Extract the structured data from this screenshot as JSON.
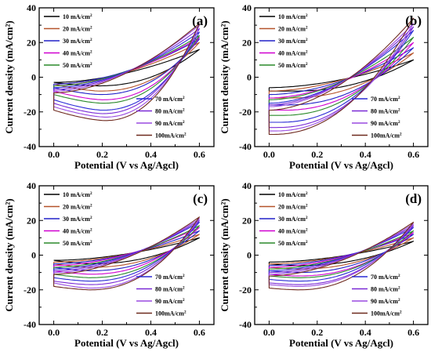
{
  "chart_data": [
    {
      "type": "line",
      "panel_label": "(a)",
      "xlabel": "Potential (V vs Ag/Agcl)",
      "ylabel": "Current density (mA/cm²)",
      "xlim": [
        -0.06,
        0.66
      ],
      "ylim": [
        -40,
        40
      ],
      "xticks": [
        "0.0",
        "0.2",
        "0.4",
        "0.6"
      ],
      "yticks": [
        "40",
        "20",
        "0",
        "-20",
        "-40"
      ],
      "legend_left": [
        "10 mA/cm2",
        "20 mA/cm2",
        "30 mA/cm2",
        "40 mA/cm2",
        "50 mA/cm2"
      ],
      "legend_right": [
        "70 mA/cm2",
        "80 mA/cm2",
        "90 mA/cm2",
        "100mA/cm2"
      ],
      "series": [
        {
          "color": "#000000",
          "upper_end": 16,
          "lower_min": -5,
          "lower_min_x": 0.18,
          "start_low": -3,
          "start_high": -3
        },
        {
          "color": "#b5532a",
          "upper_end": 20,
          "lower_min": -8,
          "lower_min_x": 0.19,
          "start_low": -4,
          "start_high": -4
        },
        {
          "color": "#2222c8",
          "upper_end": 22,
          "lower_min": -10,
          "lower_min_x": 0.19,
          "start_low": -6,
          "start_high": -4
        },
        {
          "color": "#d000d0",
          "upper_end": 23,
          "lower_min": -13,
          "lower_min_x": 0.2,
          "start_low": -8,
          "start_high": -5
        },
        {
          "color": "#2a8a2a",
          "upper_end": 24,
          "lower_min": -15,
          "lower_min_x": 0.2,
          "start_low": -10,
          "start_high": -5
        },
        {
          "color": "#2a2ad6",
          "upper_end": 26,
          "lower_min": -19,
          "lower_min_x": 0.2,
          "start_low": -13,
          "start_high": -6
        },
        {
          "color": "#7a2ad6",
          "upper_end": 28,
          "lower_min": -21,
          "lower_min_x": 0.2,
          "start_low": -15,
          "start_high": -7
        },
        {
          "color": "#9a4ae0",
          "upper_end": 30,
          "lower_min": -23,
          "lower_min_x": 0.21,
          "start_low": -17,
          "start_high": -8
        },
        {
          "color": "#6e2a1e",
          "upper_end": 31,
          "lower_min": -25,
          "lower_min_x": 0.21,
          "start_low": -19,
          "start_high": -9
        }
      ]
    },
    {
      "type": "line",
      "panel_label": "(b)",
      "xlabel": "Potential (V vs Ag/Agcl)",
      "ylabel": "Current density (mA/cm²)",
      "xlim": [
        -0.06,
        0.66
      ],
      "ylim": [
        -40,
        40
      ],
      "xticks": [
        "0.0",
        "0.2",
        "0.4",
        "0.6"
      ],
      "yticks": [
        "40",
        "20",
        "0",
        "-20",
        "-40"
      ],
      "legend_left": [
        "10 mA/cm2",
        "20 mA/cm2",
        "30 mA/cm2",
        "40 mA/cm2",
        "50 mA/cm2"
      ],
      "legend_right": [
        "70 mA/cm2",
        "80 mA/cm2",
        "90 mA/cm2",
        "100mA/cm2"
      ],
      "series": [
        {
          "color": "#000000",
          "upper_end": 10,
          "lower_min": -8,
          "lower_min_x": 0.1,
          "start_low": -8,
          "start_high": -6
        },
        {
          "color": "#b5532a",
          "upper_end": 14,
          "lower_min": -12,
          "lower_min_x": 0.08,
          "start_low": -12,
          "start_high": -8
        },
        {
          "color": "#2222c8",
          "upper_end": 17,
          "lower_min": -16,
          "lower_min_x": 0.07,
          "start_low": -16,
          "start_high": -10
        },
        {
          "color": "#d000d0",
          "upper_end": 20,
          "lower_min": -19,
          "lower_min_x": 0.06,
          "start_low": -19,
          "start_high": -12
        },
        {
          "color": "#2a8a2a",
          "upper_end": 23,
          "lower_min": -22,
          "lower_min_x": 0.05,
          "start_low": -22,
          "start_high": -13
        },
        {
          "color": "#2a2ad6",
          "upper_end": 27,
          "lower_min": -26,
          "lower_min_x": 0.04,
          "start_low": -26,
          "start_high": -15
        },
        {
          "color": "#7a2ad6",
          "upper_end": 29,
          "lower_min": -29,
          "lower_min_x": 0.03,
          "start_low": -29,
          "start_high": -16
        },
        {
          "color": "#9a4ae0",
          "upper_end": 31,
          "lower_min": -31,
          "lower_min_x": 0.02,
          "start_low": -31,
          "start_high": -17
        },
        {
          "color": "#6e2a1e",
          "upper_end": 34,
          "lower_min": -33,
          "lower_min_x": 0.01,
          "start_low": -33,
          "start_high": -19
        }
      ]
    },
    {
      "type": "line",
      "panel_label": "(c)",
      "xlabel": "Potential (V vs Ag/Agcl)",
      "ylabel": "Current density (mA/cm²)",
      "xlim": [
        -0.06,
        0.66
      ],
      "ylim": [
        -40,
        40
      ],
      "xticks": [
        "0.0",
        "0.2",
        "0.4",
        "0.6"
      ],
      "yticks": [
        "40",
        "20",
        "0",
        "-20",
        "-40"
      ],
      "legend_left": [
        "10 mA/cm2",
        "20 mA/cm2",
        "30 mA/cm2",
        "40 mA/cm2",
        "50 mA/cm2"
      ],
      "legend_right": [
        "70 mA/cm2",
        "80 mA/cm2",
        "90 mA/cm2",
        "100mA/cm2"
      ],
      "series": [
        {
          "color": "#000000",
          "upper_end": 10,
          "lower_min": -5,
          "lower_min_x": 0.15,
          "start_low": -3,
          "start_high": -3
        },
        {
          "color": "#b5532a",
          "upper_end": 12,
          "lower_min": -7,
          "lower_min_x": 0.15,
          "start_low": -5,
          "start_high": -4
        },
        {
          "color": "#2222c8",
          "upper_end": 14,
          "lower_min": -9,
          "lower_min_x": 0.15,
          "start_low": -7,
          "start_high": -5
        },
        {
          "color": "#d000d0",
          "upper_end": 16,
          "lower_min": -11,
          "lower_min_x": 0.15,
          "start_low": -9,
          "start_high": -6
        },
        {
          "color": "#2a8a2a",
          "upper_end": 17,
          "lower_min": -13,
          "lower_min_x": 0.15,
          "start_low": -11,
          "start_high": -7
        },
        {
          "color": "#2a2ad6",
          "upper_end": 19,
          "lower_min": -15,
          "lower_min_x": 0.15,
          "start_low": -13,
          "start_high": -8
        },
        {
          "color": "#7a2ad6",
          "upper_end": 20,
          "lower_min": -17,
          "lower_min_x": 0.15,
          "start_low": -15,
          "start_high": -9
        },
        {
          "color": "#9a4ae0",
          "upper_end": 21,
          "lower_min": -19,
          "lower_min_x": 0.15,
          "start_low": -16,
          "start_high": -10
        },
        {
          "color": "#6e2a1e",
          "upper_end": 22,
          "lower_min": -20,
          "lower_min_x": 0.15,
          "start_low": -18,
          "start_high": -11
        }
      ]
    },
    {
      "type": "line",
      "panel_label": "(d)",
      "xlabel": "Potential (V vs Ag/Agcl)",
      "ylabel": "Current density (mA/cm²)",
      "xlim": [
        -0.06,
        0.66
      ],
      "ylim": [
        -40,
        40
      ],
      "xticks": [
        "0.0",
        "0.2",
        "0.4",
        "0.6"
      ],
      "yticks": [
        "40",
        "20",
        "0",
        "-20",
        "-40"
      ],
      "legend_left": [
        "10 mA/cm2",
        "20 mA/cm2",
        "30 mA/cm2",
        "40 mA/cm2",
        "50 mA/cm2"
      ],
      "legend_right": [
        "70 mA/cm2",
        "80 mA/cm2",
        "90 mA/cm2",
        "100mA/cm2"
      ],
      "series": [
        {
          "color": "#000000",
          "upper_end": 8,
          "lower_min": -6,
          "lower_min_x": 0.12,
          "start_low": -5,
          "start_high": -4
        },
        {
          "color": "#b5532a",
          "upper_end": 10,
          "lower_min": -8,
          "lower_min_x": 0.12,
          "start_low": -7,
          "start_high": -5
        },
        {
          "color": "#2222c8",
          "upper_end": 12,
          "lower_min": -10,
          "lower_min_x": 0.12,
          "start_low": -9,
          "start_high": -6
        },
        {
          "color": "#d000d0",
          "upper_end": 13,
          "lower_min": -12,
          "lower_min_x": 0.12,
          "start_low": -11,
          "start_high": -7
        },
        {
          "color": "#2a8a2a",
          "upper_end": 14,
          "lower_min": -13,
          "lower_min_x": 0.12,
          "start_low": -12,
          "start_high": -8
        },
        {
          "color": "#2a2ad6",
          "upper_end": 16,
          "lower_min": -15,
          "lower_min_x": 0.12,
          "start_low": -14,
          "start_high": -9
        },
        {
          "color": "#7a2ad6",
          "upper_end": 17,
          "lower_min": -17,
          "lower_min_x": 0.12,
          "start_low": -16,
          "start_high": -10
        },
        {
          "color": "#9a4ae0",
          "upper_end": 18,
          "lower_min": -18,
          "lower_min_x": 0.12,
          "start_low": -17,
          "start_high": -11
        },
        {
          "color": "#6e2a1e",
          "upper_end": 19,
          "lower_min": -20,
          "lower_min_x": 0.12,
          "start_low": -19,
          "start_high": -12
        }
      ]
    }
  ]
}
